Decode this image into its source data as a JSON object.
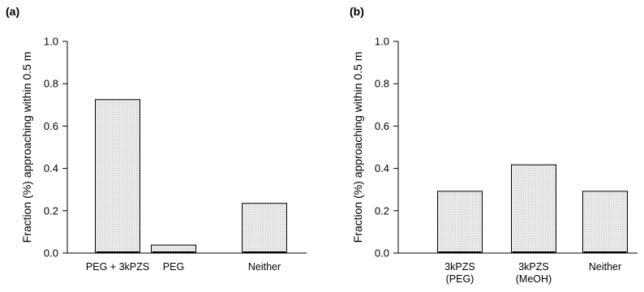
{
  "chart_data": [
    {
      "type": "bar",
      "panel_label": "(a)",
      "ylabel": "Fraction (%) approaching within 0.5 m",
      "ylim": [
        0,
        1.0
      ],
      "yticks": [
        "0.0",
        "0.2",
        "0.4",
        "0.6",
        "0.8",
        "1.0"
      ],
      "categories": [
        [
          "PEG + 3kPZS"
        ],
        [
          "PEG"
        ],
        [
          "Neither"
        ]
      ],
      "values": [
        0.725,
        0.038,
        0.235
      ],
      "bar_fill": "#e6e6e6",
      "bar_stroke": "#000000"
    },
    {
      "type": "bar",
      "panel_label": "(b)",
      "ylabel": "Fraction (%) approaching within 0.5 m",
      "ylim": [
        0,
        1.0
      ],
      "yticks": [
        "0.0",
        "0.2",
        "0.4",
        "0.6",
        "0.8",
        "1.0"
      ],
      "categories": [
        [
          "3kPZS",
          "(PEG)"
        ],
        [
          "3kPZS",
          "(MeOH)"
        ],
        [
          "Neither"
        ]
      ],
      "values": [
        0.292,
        0.417,
        0.292
      ],
      "bar_fill": "#e6e6e6",
      "bar_stroke": "#000000"
    }
  ]
}
